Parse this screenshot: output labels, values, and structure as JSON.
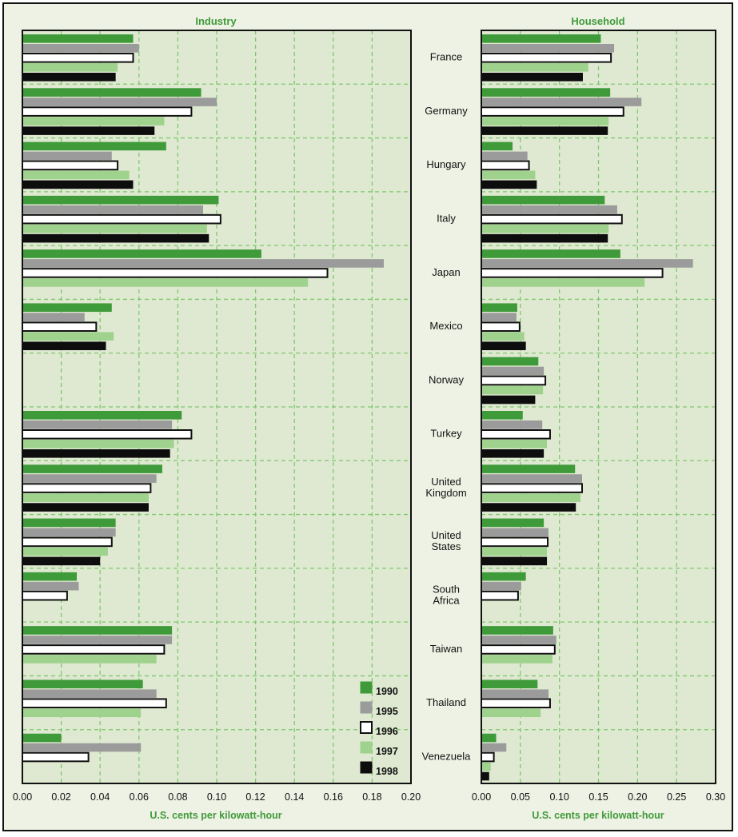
{
  "chart_data": [
    {
      "type": "bar",
      "orientation": "horizontal",
      "title": "Industry",
      "xlabel": "U.S. cents per kilowatt-hour",
      "xlim": [
        0,
        0.2
      ],
      "xticks": [
        "0.00",
        "0.02",
        "0.04",
        "0.06",
        "0.08",
        "0.10",
        "0.12",
        "0.14",
        "0.16",
        "0.18",
        "0.20"
      ],
      "grid": true,
      "categories": [
        "France",
        "Germany",
        "Hungary",
        "Italy",
        "Japan",
        "Mexico",
        "Norway",
        "Turkey",
        "United Kingdom",
        "United States",
        "South Africa",
        "Taiwan",
        "Thailand",
        "Venezuela"
      ],
      "series": [
        {
          "name": "1990",
          "values": [
            0.057,
            0.092,
            0.074,
            0.101,
            0.123,
            0.046,
            null,
            0.082,
            0.072,
            0.048,
            0.028,
            0.077,
            0.062,
            0.02
          ]
        },
        {
          "name": "1995",
          "values": [
            0.06,
            0.1,
            0.046,
            0.093,
            0.186,
            0.032,
            null,
            0.077,
            0.069,
            0.048,
            0.029,
            0.077,
            0.069,
            0.061
          ]
        },
        {
          "name": "1996",
          "values": [
            0.057,
            0.087,
            0.049,
            0.102,
            0.157,
            0.038,
            null,
            0.087,
            0.066,
            0.046,
            0.023,
            0.073,
            0.074,
            0.034
          ]
        },
        {
          "name": "1997",
          "values": [
            0.049,
            0.073,
            0.055,
            0.095,
            0.147,
            0.047,
            null,
            0.078,
            0.065,
            0.044,
            null,
            0.069,
            0.061,
            null
          ]
        },
        {
          "name": "1998",
          "values": [
            0.048,
            0.068,
            0.057,
            0.096,
            null,
            0.043,
            null,
            0.076,
            0.065,
            0.04,
            null,
            null,
            null,
            null
          ]
        }
      ]
    },
    {
      "type": "bar",
      "orientation": "horizontal",
      "title": "Household",
      "xlabel": "U.S. cents per kilowatt-hour",
      "xlim": [
        0,
        0.3
      ],
      "xticks": [
        "0.00",
        "0.05",
        "0.10",
        "0.15",
        "0.20",
        "0.25",
        "0.30"
      ],
      "grid": true,
      "categories": [
        "France",
        "Germany",
        "Hungary",
        "Italy",
        "Japan",
        "Mexico",
        "Norway",
        "Turkey",
        "United Kingdom",
        "United States",
        "South Africa",
        "Taiwan",
        "Thailand",
        "Venezuela"
      ],
      "series": [
        {
          "name": "1990",
          "values": [
            0.153,
            0.165,
            0.04,
            0.158,
            0.178,
            0.046,
            0.073,
            0.053,
            0.12,
            0.08,
            0.057,
            0.092,
            0.072,
            0.019
          ]
        },
        {
          "name": "1995",
          "values": [
            0.17,
            0.205,
            0.059,
            0.174,
            0.271,
            0.045,
            0.08,
            0.078,
            0.129,
            0.086,
            0.051,
            0.096,
            0.086,
            0.032
          ]
        },
        {
          "name": "1996",
          "values": [
            0.166,
            0.182,
            0.061,
            0.18,
            0.232,
            0.049,
            0.082,
            0.088,
            0.129,
            0.085,
            0.047,
            0.094,
            0.088,
            0.016
          ]
        },
        {
          "name": "1997",
          "values": [
            0.137,
            0.163,
            0.069,
            0.163,
            0.209,
            0.055,
            0.079,
            0.084,
            0.127,
            0.084,
            null,
            0.091,
            0.076,
            0.012
          ]
        },
        {
          "name": "1998",
          "values": [
            0.13,
            0.162,
            0.071,
            0.162,
            null,
            0.057,
            0.069,
            0.08,
            0.121,
            0.084,
            null,
            null,
            null,
            0.01
          ]
        }
      ]
    }
  ],
  "country_labels": [
    "France",
    "Germany",
    "Hungary",
    "Italy",
    "Japan",
    "Mexico",
    "Norway",
    "Turkey",
    "United Kingdom",
    "United States",
    "South Africa",
    "Taiwan",
    "Thailand",
    "Venezuela"
  ],
  "legend": [
    {
      "label": "1990",
      "fill": "#3f9a3a",
      "stroke": "#3f9a3a"
    },
    {
      "label": "1995",
      "fill": "#9b9b9b",
      "stroke": "#9b9b9b"
    },
    {
      "label": "1996",
      "fill": "#ffffff",
      "stroke": "#111111"
    },
    {
      "label": "1997",
      "fill": "#9fd28c",
      "stroke": "#9fd28c"
    },
    {
      "label": "1998",
      "fill": "#0d0d0d",
      "stroke": "#0d0d0d"
    }
  ],
  "colors": {
    "grid": "#7fc86f",
    "plot_bg": "#dfe9d1",
    "title": "#3f9a3a"
  }
}
